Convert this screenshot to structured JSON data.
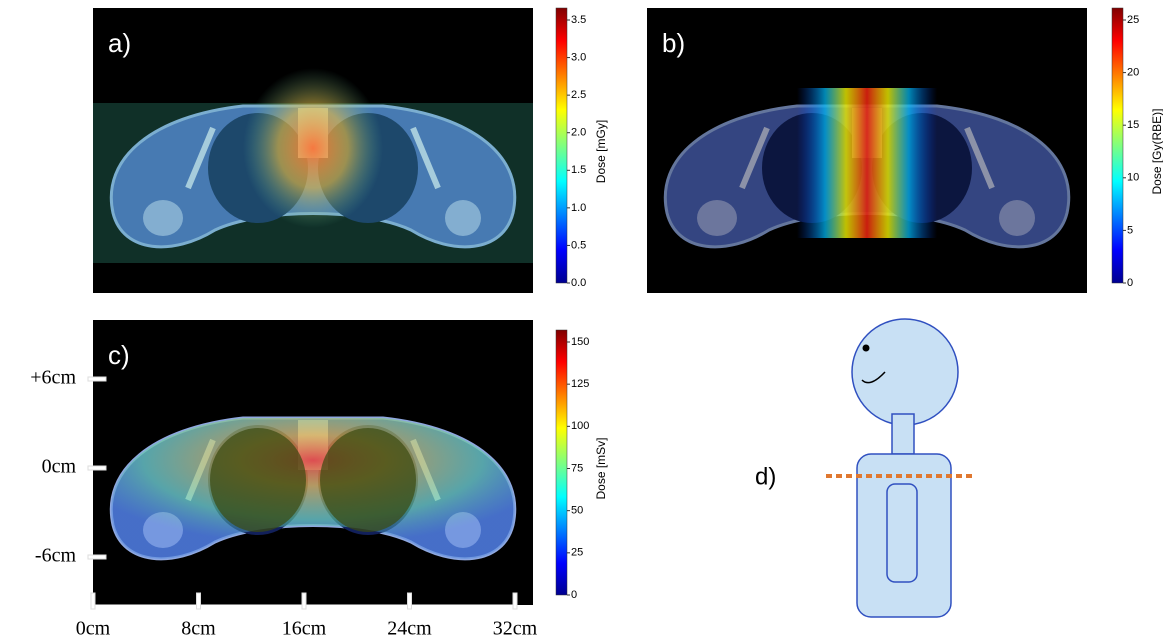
{
  "panels": [
    {
      "label": "a)",
      "colorbar": {
        "label": "Dose [mGy]",
        "ticks": [
          "0.0",
          "0.5",
          "1.0",
          "1.5",
          "2.0",
          "2.5",
          "3.0",
          "3.5"
        ]
      }
    },
    {
      "label": "b)",
      "colorbar": {
        "label": "Dose [Gy(RBE)]",
        "ticks": [
          "0",
          "5",
          "10",
          "15",
          "20",
          "25"
        ]
      }
    },
    {
      "label": "c)",
      "colorbar": {
        "label": "Dose [mSv]",
        "ticks": [
          "0",
          "25",
          "50",
          "75",
          "100",
          "125",
          "150"
        ]
      }
    }
  ],
  "axes": {
    "x_ticks": [
      "0cm",
      "8cm",
      "16cm",
      "24cm",
      "32cm"
    ],
    "y_ticks": [
      "+6cm",
      "0cm",
      "-6cm"
    ]
  },
  "phantom": {
    "label": "d)"
  }
}
